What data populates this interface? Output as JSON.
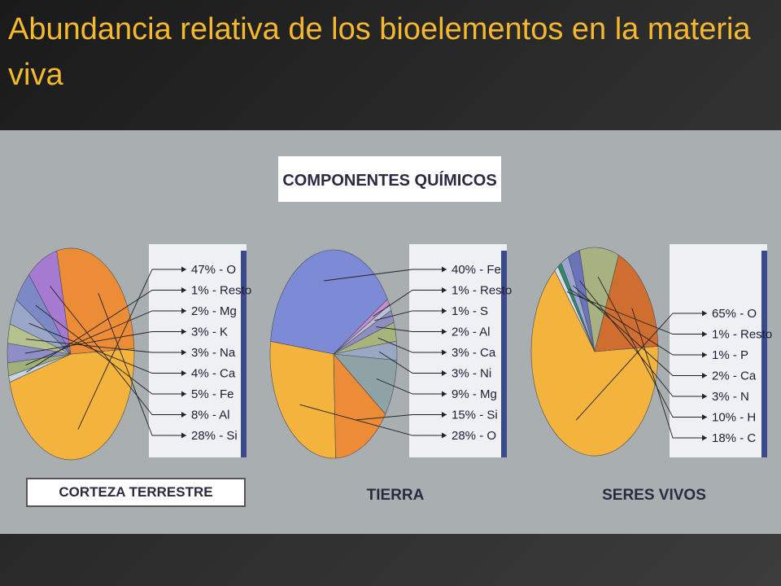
{
  "slide": {
    "title": "Abundancia relativa de los bioelementos en la materia viva"
  },
  "figure": {
    "heading": "COMPONENTES QUÍMICOS"
  },
  "chart_data": [
    {
      "type": "pie",
      "title": "CORTEZA TERRESTRE",
      "labels": [
        "47% - O",
        "1% - Resto",
        "2% - Mg",
        "3% - K",
        "3% - Na",
        "4% - Ca",
        "5% - Fe",
        "8% - Al",
        "28% - Si"
      ],
      "slices": [
        {
          "name": "O",
          "value": 47,
          "color": "#f3b33d"
        },
        {
          "name": "Resto",
          "value": 1,
          "color": "#c7d2e4"
        },
        {
          "name": "Mg",
          "value": 2,
          "color": "#9fb07a"
        },
        {
          "name": "K",
          "value": 3,
          "color": "#8f8fc8"
        },
        {
          "name": "Na",
          "value": 3,
          "color": "#b6c28d"
        },
        {
          "name": "Ca",
          "value": 4,
          "color": "#9aa7c9"
        },
        {
          "name": "Fe",
          "value": 5,
          "color": "#7d88c6"
        },
        {
          "name": "Al",
          "value": 8,
          "color": "#a57ad0"
        },
        {
          "name": "Si",
          "value": 28,
          "color": "#ec8c36"
        }
      ]
    },
    {
      "type": "pie",
      "title": "TIERRA",
      "labels": [
        "40% - Fe",
        "1% - Resto",
        "1% - S",
        "2% - Al",
        "3% - Ca",
        "3% - Ni",
        "9% - Mg",
        "15% - Si",
        "28% - O"
      ],
      "slices": [
        {
          "name": "Fe",
          "value": 40,
          "color": "#7d8bd6"
        },
        {
          "name": "Resto",
          "value": 1,
          "color": "#c88ad0"
        },
        {
          "name": "S",
          "value": 1,
          "color": "#b7c2d8"
        },
        {
          "name": "Al",
          "value": 2,
          "color": "#8e8ec2"
        },
        {
          "name": "Ca",
          "value": 3,
          "color": "#a7b57c"
        },
        {
          "name": "Ni",
          "value": 3,
          "color": "#9aa8c4"
        },
        {
          "name": "Mg",
          "value": 9,
          "color": "#8fa3a6"
        },
        {
          "name": "Si",
          "value": 15,
          "color": "#ec8c36"
        },
        {
          "name": "O",
          "value": 28,
          "color": "#f3b33d"
        }
      ]
    },
    {
      "type": "pie",
      "title": "SERES VIVOS",
      "labels": [
        "65% - O",
        "1% - Resto",
        "1% - P",
        "2% - Ca",
        "3% - N",
        "10% - H",
        "18% - C"
      ],
      "slices": [
        {
          "name": "O",
          "value": 65,
          "color": "#f3b33d"
        },
        {
          "name": "Resto",
          "value": 1,
          "color": "#d5ddea"
        },
        {
          "name": "P",
          "value": 1,
          "color": "#2f8a66"
        },
        {
          "name": "Ca",
          "value": 2,
          "color": "#9aa6d0"
        },
        {
          "name": "N",
          "value": 3,
          "color": "#6a74b8"
        },
        {
          "name": "H",
          "value": 10,
          "color": "#a7b182"
        },
        {
          "name": "C",
          "value": 18,
          "color": "#cf6e30"
        }
      ]
    }
  ]
}
